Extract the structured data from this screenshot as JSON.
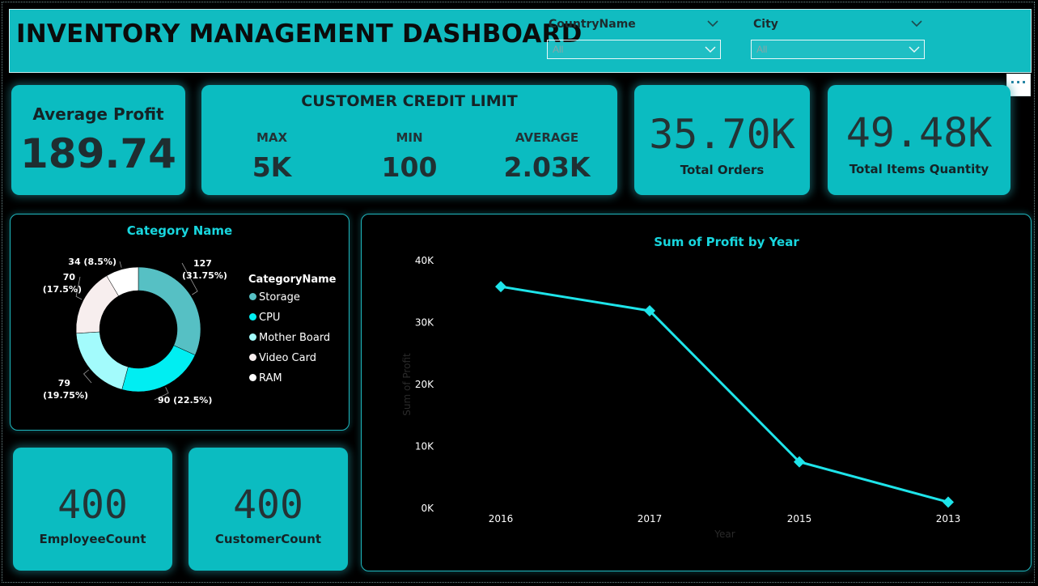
{
  "header": {
    "title": "INVENTORY MANAGEMENT DASHBOARD",
    "slicers": [
      {
        "label": "CountryName",
        "value": "All"
      },
      {
        "label": "City",
        "value": "All"
      }
    ],
    "more_options": "···"
  },
  "kpis": {
    "avg_profit": {
      "label": "Average Profit",
      "value": "189.74"
    },
    "credit": {
      "title": "CUSTOMER CREDIT LIMIT",
      "items": [
        {
          "label": "MAX",
          "value": "5K"
        },
        {
          "label": "MIN",
          "value": "100"
        },
        {
          "label": "AVERAGE",
          "value": "2.03K"
        }
      ]
    },
    "total_orders": {
      "value": "35.70K",
      "label": "Total Orders"
    },
    "total_items": {
      "value": "49.48K",
      "label": "Total Items Quantity"
    },
    "employee_count": {
      "value": "400",
      "label": "EmployeeCount"
    },
    "customer_count": {
      "value": "400",
      "label": "CustomerCount"
    }
  },
  "donut": {
    "title": "Category Name",
    "legend_title": "CategoryName",
    "slices": [
      {
        "name": "Storage",
        "value": 127,
        "label_value": "127",
        "label_pct": "(31.75%)",
        "color": "#56c0c4"
      },
      {
        "name": "CPU",
        "value": 90,
        "label_value": "90 (22.5%)",
        "label_pct": "",
        "color": "#00eef2"
      },
      {
        "name": "Mother Board",
        "value": 79,
        "label_value": "79",
        "label_pct": "(19.75%)",
        "color": "#a3fbfc"
      },
      {
        "name": "Video Card",
        "value": 70,
        "label_value": "70",
        "label_pct": "(17.5%)",
        "color": "#f7eeee"
      },
      {
        "name": "RAM",
        "value": 34,
        "label_value": "34 (8.5%)",
        "label_pct": "",
        "color": "#ffffff"
      }
    ]
  },
  "colors": {
    "accent": "#0bbcc1",
    "line": "#1ee4ea",
    "chart_title": "#18d6de"
  },
  "chart_data": {
    "type": "line",
    "title": "Sum of Profit by Year",
    "xlabel": "Year",
    "ylabel": "Sum of Profit",
    "categories": [
      "2016",
      "2017",
      "2015",
      "2013"
    ],
    "series": [
      {
        "values": [
          35800,
          31900,
          7500,
          1000
        ]
      }
    ],
    "ylim": [
      0,
      40000
    ],
    "yticks": [
      0,
      10000,
      20000,
      30000,
      40000
    ],
    "ytick_labels": [
      "0K",
      "10K",
      "20K",
      "30K",
      "40K"
    ],
    "grid": false,
    "legend": "none"
  }
}
